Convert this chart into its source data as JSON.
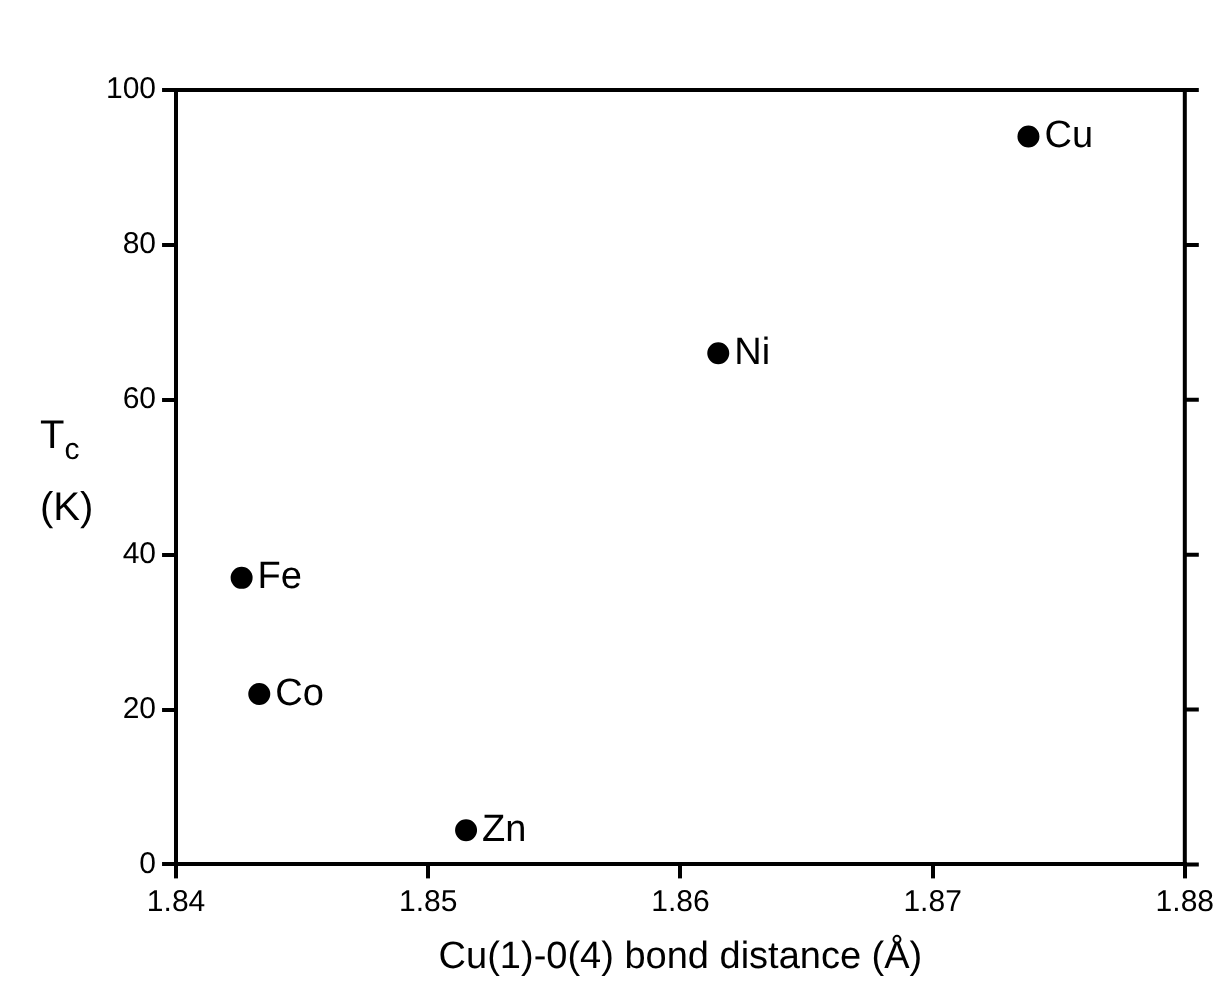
{
  "chart_data": {
    "type": "scatter",
    "xlabel": "Cu(1)-0(4) bond distance (Å)",
    "ylabel": "T$_{c}$ (K)",
    "x": [
      1.8738,
      1.8615,
      1.8426,
      1.8433,
      1.8515
    ],
    "values": [
      94,
      66,
      37,
      22,
      4.4
    ],
    "color": "#000000",
    "marker": "circle",
    "xlim": [
      1.84,
      1.88
    ],
    "xticks": [
      1.84,
      1.85,
      1.86,
      1.87,
      1.88
    ],
    "ylim": [
      0,
      100
    ],
    "yticks": [
      0,
      20,
      40,
      60,
      80,
      100
    ],
    "grid": false,
    "legend": false,
    "annotations": [
      {
        "text": "Cu",
        "x": 1.8738,
        "y": 94
      },
      {
        "text": "Ni",
        "x": 1.8615,
        "y": 66
      },
      {
        "text": "Fe",
        "x": 1.8426,
        "y": 37
      },
      {
        "text": "Co",
        "x": 1.8433,
        "y": 22
      },
      {
        "text": "Zn",
        "x": 1.8515,
        "y": 4.4
      }
    ]
  }
}
